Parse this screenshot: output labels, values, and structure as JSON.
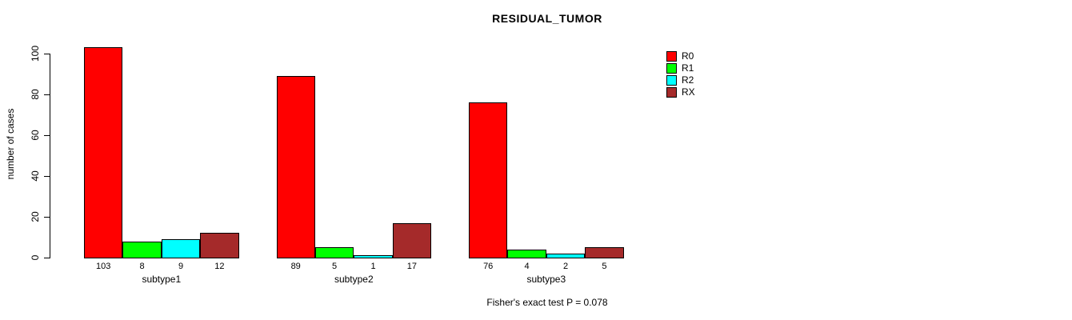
{
  "chart_data": {
    "type": "bar",
    "title": "RESIDUAL_TUMOR",
    "categories": [
      "subtype1",
      "subtype2",
      "subtype3"
    ],
    "series": [
      {
        "name": "R0",
        "color": "#FF0000",
        "values": [
          103,
          89,
          76
        ]
      },
      {
        "name": "R1",
        "color": "#00FF00",
        "values": [
          8,
          5,
          4
        ]
      },
      {
        "name": "R2",
        "color": "#00FFFF",
        "values": [
          9,
          1,
          2
        ]
      },
      {
        "name": "RX",
        "color": "#A52A2A",
        "values": [
          12,
          17,
          5
        ]
      }
    ],
    "xlabel": "",
    "ylabel": "number of cases",
    "ylim": [
      0,
      100
    ],
    "yticks": [
      0,
      20,
      40,
      60,
      80,
      100
    ],
    "grid": false,
    "legend_position": "right-outside",
    "bar_value_labels": true,
    "annotation": "Fisher's exact test P = 0.078",
    "background": "#FFFFFF"
  }
}
